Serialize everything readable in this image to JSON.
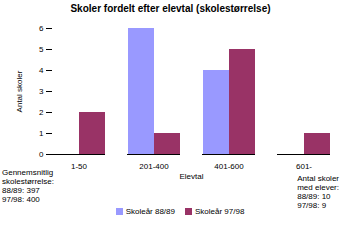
{
  "chart_data": {
    "type": "bar",
    "title": "Skoler fordelt efter elevtal (skolestørrelse)",
    "x_label": "Elevtal",
    "y_label": "Antal skoler",
    "categories": [
      "1-50",
      "201-400",
      "401-600",
      "601-"
    ],
    "series": [
      {
        "name": "Skoleår 88/89",
        "color": "#9999ff",
        "values": [
          0,
          6,
          4,
          0
        ]
      },
      {
        "name": "Skoleår 97/98",
        "color": "#993366",
        "values": [
          2,
          1,
          5,
          1
        ]
      }
    ],
    "ylim": [
      0,
      6
    ],
    "yticks": [
      0,
      1,
      2,
      3,
      4,
      5,
      6
    ],
    "legend": "bottom",
    "annotations": [
      [
        "Gennemsnitlig",
        "skolestørrelse:",
        "88/89: 397",
        "97/98: 400"
      ],
      [
        "Antal skoler",
        "med elever:",
        "88/89: 10",
        "97/98: 9"
      ]
    ]
  }
}
